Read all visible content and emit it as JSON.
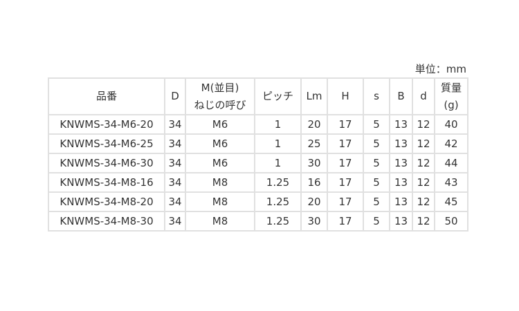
{
  "unit_label": "単位：mm",
  "headers": [
    "品番",
    "D",
    "M(並目)\nねじの呼び",
    "ピッチ",
    "Lm",
    "H",
    "s",
    "B",
    "d",
    "質量\n(g)"
  ],
  "header_lines": {
    "m1": "M(並目)",
    "m2": "ねじの呼び",
    "w1": "質量",
    "w2": "(g)"
  },
  "rows": [
    [
      "KNWMS-34-M6-20",
      "34",
      "M6",
      "1",
      "20",
      "17",
      "5",
      "13",
      "12",
      "40"
    ],
    [
      "KNWMS-34-M6-25",
      "34",
      "M6",
      "1",
      "25",
      "17",
      "5",
      "13",
      "12",
      "42"
    ],
    [
      "KNWMS-34-M6-30",
      "34",
      "M6",
      "1",
      "30",
      "17",
      "5",
      "13",
      "12",
      "44"
    ],
    [
      "KNWMS-34-M8-16",
      "34",
      "M8",
      "1.25",
      "16",
      "17",
      "5",
      "13",
      "12",
      "43"
    ],
    [
      "KNWMS-34-M8-20",
      "34",
      "M8",
      "1.25",
      "20",
      "17",
      "5",
      "13",
      "12",
      "45"
    ],
    [
      "KNWMS-34-M8-30",
      "34",
      "M8",
      "1.25",
      "30",
      "17",
      "5",
      "13",
      "12",
      "50"
    ]
  ]
}
